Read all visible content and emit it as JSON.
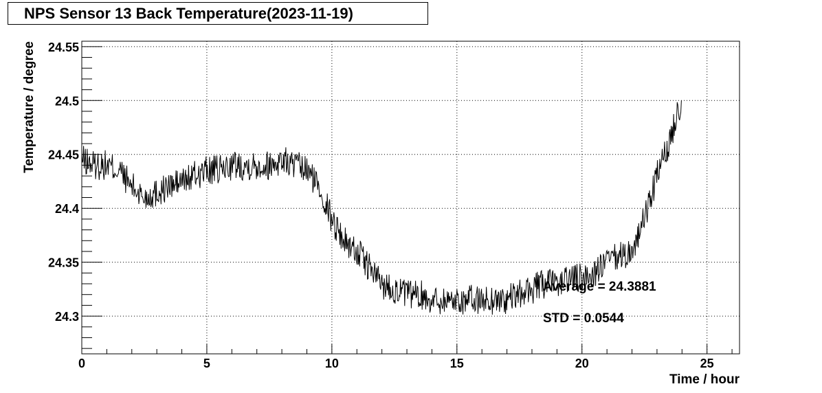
{
  "chart_data": {
    "type": "line",
    "title": "NPS Sensor 13 Back Temperature(2023-11-19)",
    "xlabel": "Time / hour",
    "ylabel": "Temperature / degree",
    "xlim": [
      0,
      26.3
    ],
    "ylim": [
      24.265,
      24.555
    ],
    "x_ticks": [
      0,
      5,
      10,
      15,
      20,
      25
    ],
    "x_tick_labels": [
      "0",
      "5",
      "10",
      "15",
      "20",
      "25"
    ],
    "y_ticks": [
      24.3,
      24.35,
      24.4,
      24.45,
      24.5,
      24.55
    ],
    "y_tick_labels": [
      "24.3",
      "24.35",
      "24.4",
      "24.45",
      "24.5",
      "24.55"
    ],
    "grid": true,
    "series": [
      {
        "color": "#000000",
        "x": [
          0.0,
          0.5,
          1.0,
          1.5,
          2.0,
          2.5,
          3.0,
          3.5,
          4.0,
          4.5,
          5.0,
          5.5,
          6.0,
          6.5,
          7.0,
          7.5,
          8.0,
          8.5,
          9.0,
          9.5,
          10.0,
          10.5,
          11.0,
          11.5,
          12.0,
          12.5,
          13.0,
          13.5,
          14.0,
          14.5,
          15.0,
          15.5,
          16.0,
          16.5,
          17.0,
          17.5,
          18.0,
          18.5,
          19.0,
          19.5,
          20.0,
          20.5,
          21.0,
          21.5,
          22.0,
          22.5,
          23.0,
          23.5,
          23.8,
          24.0
        ],
        "y": [
          24.445,
          24.44,
          24.44,
          24.435,
          24.42,
          24.41,
          24.415,
          24.42,
          24.425,
          24.43,
          24.435,
          24.435,
          24.44,
          24.44,
          24.44,
          24.44,
          24.445,
          24.44,
          24.435,
          24.42,
          24.39,
          24.37,
          24.36,
          24.345,
          24.33,
          24.325,
          24.32,
          24.32,
          24.315,
          24.315,
          24.315,
          24.315,
          24.315,
          24.315,
          24.315,
          24.32,
          24.325,
          24.33,
          24.33,
          24.335,
          24.335,
          24.34,
          24.35,
          24.355,
          24.36,
          24.39,
          24.43,
          24.46,
          24.49,
          24.5
        ],
        "noise": 0.014
      }
    ],
    "annotations": [
      {
        "text": "Average = 24.3881"
      },
      {
        "text": "STD = 0.0544"
      }
    ]
  }
}
